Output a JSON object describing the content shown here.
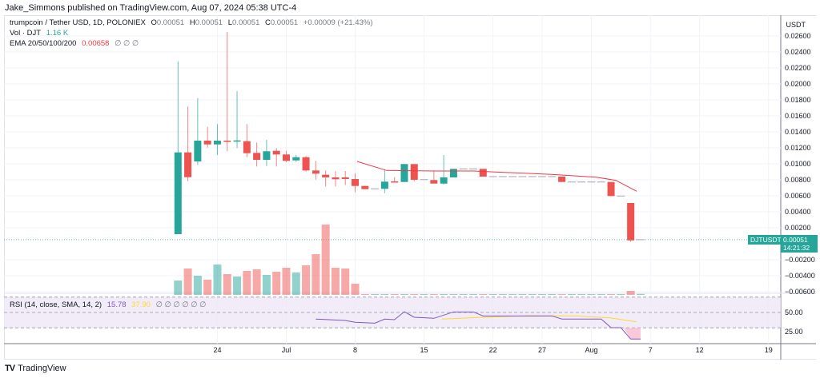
{
  "published": "Jake_Simmons published on TradingView.com, Aug 07, 2024 05:38 UTC-4",
  "legend": {
    "symbol": "trumpcoin / Tether USD, 1D, POLONIEX",
    "o_label": "O",
    "o": "0.00051",
    "h_label": "H",
    "h": "0.00051",
    "l_label": "L",
    "l": "0.00051",
    "c_label": "C",
    "c": "0.00051",
    "change": "+0.00009 (+21.43%)",
    "vol_label": "Vol · DJT",
    "vol_value": "1.16 K",
    "ema_label": "EMA 20/50/100/200",
    "ema_value": "0.00658",
    "ema_na": "∅  ∅  ∅",
    "rsi_label": "RSI (14, close, SMA, 14, 2)",
    "rsi_value": "15.78",
    "rsi_sma_value": "37.90",
    "rsi_na": "∅  ∅  ∅  ∅  ∅  ∅"
  },
  "price_axis": {
    "currency": "USDT",
    "labels": [
      "0.02600",
      "0.02400",
      "0.02200",
      "0.02000",
      "0.01800",
      "0.01600",
      "0.01400",
      "0.01200",
      "0.01000",
      "0.00800",
      "0.00600",
      "0.00400",
      "0.00200",
      "−0.00200",
      "−0.00400",
      "−0.00600"
    ],
    "values": [
      0.026,
      0.024,
      0.022,
      0.02,
      0.018,
      0.016,
      0.014,
      0.012,
      0.01,
      0.008,
      0.006,
      0.004,
      0.002,
      -0.002,
      -0.004,
      -0.006
    ],
    "last_symbol": "DJTUSDT",
    "last_price": "0.00051",
    "last_price_value": 0.00051,
    "countdown": "14:21:32"
  },
  "rsi_axis": {
    "labels": [
      "50.00",
      "25.00"
    ],
    "values": [
      50,
      25
    ]
  },
  "time_axis": {
    "labels": [
      "24",
      "Jul",
      "8",
      "15",
      "22",
      "27",
      "Aug",
      "7",
      "12",
      "19"
    ],
    "days": [
      4,
      11,
      18,
      25,
      32,
      37,
      42,
      48,
      53,
      60
    ]
  },
  "colors": {
    "up": "#26a69a",
    "down": "#ef5350",
    "ema": "#f23645",
    "rsi": "#7e57c2",
    "rsi_sma": "#fdd835",
    "flat": "#b2b5be"
  },
  "chart_data": {
    "type": "candlestick",
    "start_date": "Jun 20 2024",
    "candles": [
      [
        0,
        0.0012,
        0.02283,
        0.0012,
        0.01143,
        18
      ],
      [
        1,
        0.01143,
        0.01717,
        0.00783,
        0.00833,
        33
      ],
      [
        2,
        0.0103,
        0.01823,
        0.0099,
        0.0129,
        24
      ],
      [
        3,
        0.0129,
        0.01463,
        0.01203,
        0.01243,
        19
      ],
      [
        4,
        0.01243,
        0.01497,
        0.0111,
        0.0129,
        38
      ],
      [
        5,
        0.0129,
        0.0265,
        0.01157,
        0.0128,
        26
      ],
      [
        6,
        0.01293,
        0.0191,
        0.01197,
        0.01293,
        23
      ],
      [
        7,
        0.01283,
        0.01497,
        0.01083,
        0.01133,
        30
      ],
      [
        8,
        0.01137,
        0.01267,
        0.00967,
        0.0105,
        32
      ],
      [
        9,
        0.0105,
        0.013,
        0.00973,
        0.01157,
        25
      ],
      [
        10,
        0.01163,
        0.01197,
        0.00967,
        0.01117,
        29
      ],
      [
        11,
        0.01117,
        0.01163,
        0.01023,
        0.01037,
        34
      ],
      [
        12,
        0.01043,
        0.0111,
        0.01023,
        0.01083,
        28
      ],
      [
        13,
        0.01083,
        0.01097,
        0.00903,
        0.00917,
        37
      ],
      [
        14,
        0.00917,
        0.01037,
        0.00803,
        0.00877,
        51
      ],
      [
        15,
        0.00863,
        0.00917,
        0.00717,
        0.0083,
        88
      ],
      [
        16,
        0.0083,
        0.0091,
        0.00717,
        0.00807,
        34
      ],
      [
        17,
        0.0083,
        0.0091,
        0.00733,
        0.0081,
        33
      ],
      [
        18,
        0.0081,
        0.00883,
        0.00643,
        0.00723,
        14
      ],
      [
        19,
        0.00723,
        0.00723,
        0.00683,
        0.00683,
        1
      ],
      [
        20,
        0.00687,
        0.00687,
        0.00687,
        0.00687,
        1
      ],
      [
        21,
        0.00687,
        0.00933,
        0.00633,
        0.00777,
        1
      ],
      [
        22,
        0.0078,
        0.00833,
        0.00773,
        0.00773,
        1
      ],
      [
        23,
        0.00773,
        0.00997,
        0.00773,
        0.00997,
        1
      ],
      [
        24,
        0.00997,
        0.00997,
        0.00783,
        0.008,
        1
      ],
      [
        25,
        0.00803,
        0.00803,
        0.00803,
        0.00803,
        1
      ],
      [
        26,
        0.00797,
        0.00917,
        0.00753,
        0.00753,
        1
      ],
      [
        27,
        0.00753,
        0.0111,
        0.0074,
        0.0083,
        1
      ],
      [
        28,
        0.0083,
        0.00937,
        0.0083,
        0.00937,
        1
      ],
      [
        29,
        0.00937,
        0.00937,
        0.00937,
        0.00937,
        1
      ],
      [
        30,
        0.00937,
        0.00937,
        0.00937,
        0.00937,
        1
      ],
      [
        31,
        0.00937,
        0.00937,
        0.0084,
        0.0084,
        1
      ],
      [
        32,
        0.0084,
        0.0084,
        0.0084,
        0.0084,
        1
      ],
      [
        33,
        0.0084,
        0.0084,
        0.0084,
        0.0084,
        1
      ],
      [
        34,
        0.0084,
        0.0084,
        0.0084,
        0.0084,
        1
      ],
      [
        35,
        0.0084,
        0.0084,
        0.0084,
        0.0084,
        1
      ],
      [
        36,
        0.0084,
        0.0084,
        0.0084,
        0.0084,
        1
      ],
      [
        37,
        0.0084,
        0.0084,
        0.0084,
        0.0084,
        1
      ],
      [
        38,
        0.0084,
        0.0084,
        0.0084,
        0.0084,
        1
      ],
      [
        39,
        0.0084,
        0.0084,
        0.00773,
        0.00773,
        1
      ],
      [
        40,
        0.00773,
        0.00773,
        0.00773,
        0.00773,
        1
      ],
      [
        41,
        0.00773,
        0.00773,
        0.00773,
        0.00773,
        1
      ],
      [
        42,
        0.00773,
        0.00773,
        0.00773,
        0.00773,
        1
      ],
      [
        43,
        0.00773,
        0.00773,
        0.00773,
        0.00773,
        1
      ],
      [
        44,
        0.00773,
        0.00773,
        0.00597,
        0.00597,
        1
      ],
      [
        45,
        0.00597,
        0.00597,
        0.00597,
        0.00597,
        1
      ],
      [
        46,
        0.0051,
        0.0051,
        0.00023,
        0.00042,
        5
      ],
      [
        47,
        0.00051,
        0.00051,
        0.00051,
        0.00051,
        1.16
      ]
    ],
    "candle_fields": [
      "day",
      "open",
      "high",
      "low",
      "close",
      "volume_k"
    ],
    "ema20": [
      [
        18.2,
        0.0103
      ],
      [
        21.2,
        0.00917
      ],
      [
        26.2,
        0.0091
      ],
      [
        30,
        0.0091
      ],
      [
        38,
        0.00867
      ],
      [
        42.5,
        0.00833
      ],
      [
        44.5,
        0.00793
      ],
      [
        46.6,
        0.00657
      ]
    ],
    "rsi": [
      [
        14,
        41.4
      ],
      [
        17,
        39.6
      ],
      [
        18,
        37.2
      ],
      [
        20,
        36.1
      ],
      [
        21,
        41.4
      ],
      [
        22,
        40.6
      ],
      [
        23,
        51
      ],
      [
        24,
        43.8
      ],
      [
        26,
        42.4
      ],
      [
        28,
        50.7
      ],
      [
        30,
        50.7
      ],
      [
        31,
        45.5
      ],
      [
        38,
        45.5
      ],
      [
        39,
        41.4
      ],
      [
        43,
        41.4
      ],
      [
        44,
        30.2
      ],
      [
        45,
        30.2
      ],
      [
        46,
        15.3
      ],
      [
        47,
        15.3
      ]
    ],
    "rsi_sma": [
      [
        26.8,
        41.4
      ],
      [
        31,
        43.8
      ],
      [
        35.6,
        45.8
      ],
      [
        40.5,
        45.5
      ],
      [
        43.9,
        43
      ],
      [
        46.6,
        37.8
      ]
    ],
    "ylim": [
      -0.007,
      0.027
    ],
    "rsi_levels": [
      70,
      50,
      30
    ]
  }
}
